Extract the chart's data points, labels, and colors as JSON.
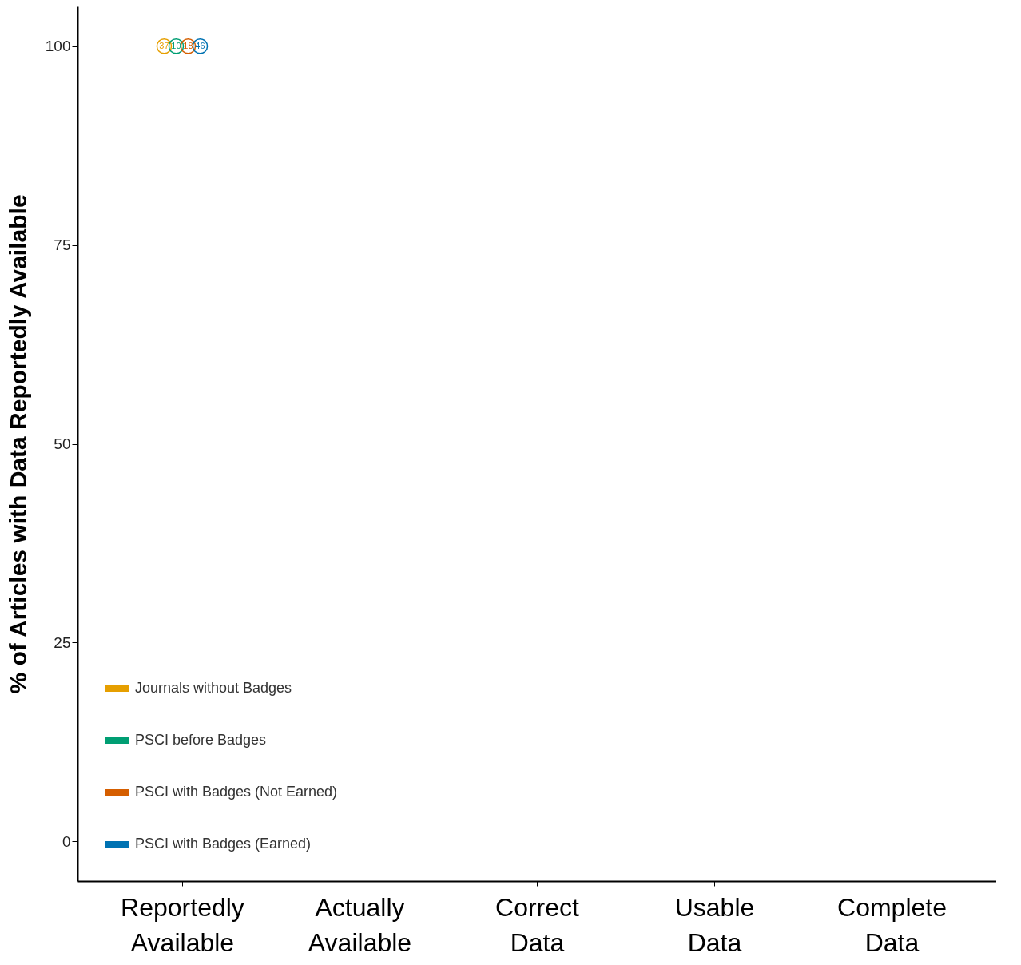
{
  "chart_data": {
    "type": "line",
    "ylabel": "% of Articles with Data Reportedly Available",
    "categories": [
      "Reportedly Available",
      "Actually Available",
      "Correct Data",
      "Usable Data",
      "Complete Data"
    ],
    "series": [
      {
        "name": "Journals without Badges",
        "color": "#e69f00",
        "values": [
          100,
          null,
          null,
          null,
          null
        ]
      },
      {
        "name": "PSCI before Badges",
        "color": "#009e73",
        "values": [
          100,
          null,
          null,
          null,
          null
        ]
      },
      {
        "name": "PSCI with Badges (Not Earned)",
        "color": "#d55e00",
        "values": [
          100,
          null,
          null,
          null,
          null
        ]
      },
      {
        "name": "PSCI with Badges (Earned)",
        "color": "#0072b2",
        "values": [
          100,
          null,
          null,
          null,
          null
        ]
      }
    ],
    "annotations": [
      {
        "text": "37",
        "x": "Reportedly Available",
        "y": 100
      },
      {
        "text": "10",
        "x": "Reportedly Available",
        "y": 100
      },
      {
        "text": "18",
        "x": "Reportedly Available",
        "y": 100
      },
      {
        "text": "46",
        "x": "Reportedly Available",
        "y": 100
      }
    ],
    "ylim": [
      -5,
      105
    ],
    "yticks": [
      0,
      25,
      50,
      75,
      100
    ],
    "grid": false,
    "legend": "bottom left",
    "marker": "circle"
  }
}
